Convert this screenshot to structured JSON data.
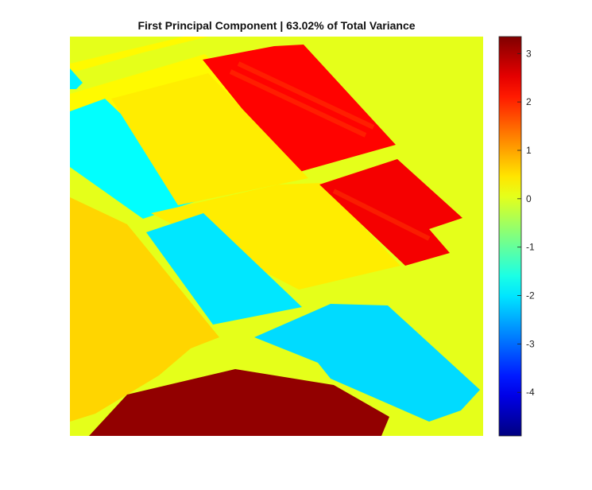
{
  "chart_data": {
    "type": "heatmap",
    "title": "First Principal Component | 63.02% of Total Variance",
    "colormap": "jet",
    "clim": [
      -4.9,
      3.35
    ],
    "axes_visible": false,
    "colorbar": {
      "location": "right",
      "ticks": [
        3,
        2,
        1,
        0,
        -1,
        -2,
        -3,
        -4
      ],
      "tick_labels": [
        "3",
        "2",
        "1",
        "0",
        "-1",
        "-2",
        "-3",
        "-4"
      ]
    },
    "regions": [
      {
        "name": "background",
        "value": 0.05
      },
      {
        "name": "top-red-field",
        "value": 2.3
      },
      {
        "name": "middle-red-field",
        "value": 2.4
      },
      {
        "name": "left-blue-field",
        "value": -1.8
      },
      {
        "name": "center-blue-field",
        "value": -2.0
      },
      {
        "name": "bottom-blue-field",
        "value": -2.1
      },
      {
        "name": "upper-yellow-strips",
        "value": 0.3
      },
      {
        "name": "middle-yellow-field",
        "value": 0.4
      },
      {
        "name": "left-mixed-field",
        "value": 0.6
      },
      {
        "name": "bottom-darkred-field",
        "value": 3.2
      },
      {
        "name": "small-left-blue-patch",
        "value": -1.9
      }
    ]
  }
}
